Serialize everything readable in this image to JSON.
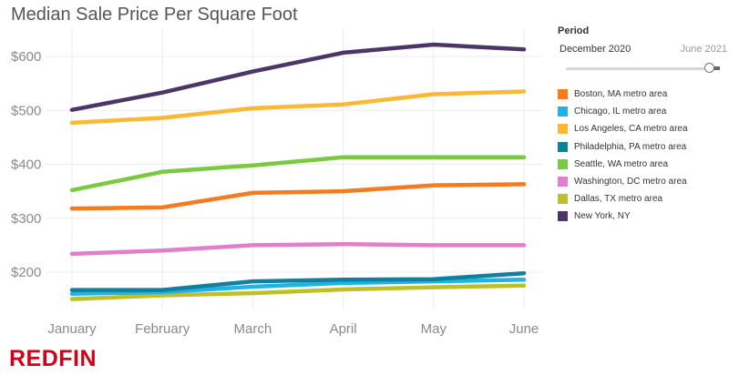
{
  "chart_data": {
    "type": "line",
    "title": "Median Sale Price Per Square Foot",
    "xlabel": "",
    "ylabel": "",
    "categories": [
      "January",
      "February",
      "March",
      "April",
      "May",
      "June"
    ],
    "ylim": [
      140,
      640
    ],
    "yticks": [
      200,
      300,
      400,
      500,
      600
    ],
    "ytick_labels": [
      "$200",
      "$300",
      "$400",
      "$500",
      "$600"
    ],
    "grid": true,
    "legend_position": "right",
    "series": [
      {
        "name": "Boston, MA metro area",
        "color": "#f47b20",
        "values": [
          318,
          320,
          347,
          350,
          361,
          363
        ]
      },
      {
        "name": "Chicago, IL metro area",
        "color": "#1fb4e4",
        "values": [
          160,
          163,
          173,
          180,
          183,
          186
        ]
      },
      {
        "name": "Los Angeles, CA metro area",
        "color": "#fbb836",
        "values": [
          477,
          486,
          504,
          511,
          530,
          535
        ]
      },
      {
        "name": "Philadelphia, PA metro area",
        "color": "#11809e",
        "values": [
          167,
          167,
          183,
          186,
          187,
          198
        ]
      },
      {
        "name": "Seattle, WA metro area",
        "color": "#7ac943",
        "values": [
          352,
          386,
          398,
          413,
          413,
          413
        ]
      },
      {
        "name": "Washington, DC metro area",
        "color": "#e17fcc",
        "values": [
          234,
          240,
          250,
          252,
          250,
          250
        ]
      },
      {
        "name": "Dallas, TX metro area",
        "color": "#bcc12a",
        "values": [
          150,
          157,
          161,
          168,
          172,
          175
        ]
      },
      {
        "name": "New York, NY",
        "color": "#4b3666",
        "values": [
          501,
          533,
          572,
          607,
          622,
          613
        ]
      }
    ],
    "draw_order": [
      6,
      1,
      3,
      5,
      0,
      4,
      2,
      7
    ]
  },
  "period": {
    "title": "Period",
    "start": "December 2020",
    "end": "June 2021"
  },
  "logo": {
    "text": "REDFIN",
    "color": "#d0021b"
  }
}
